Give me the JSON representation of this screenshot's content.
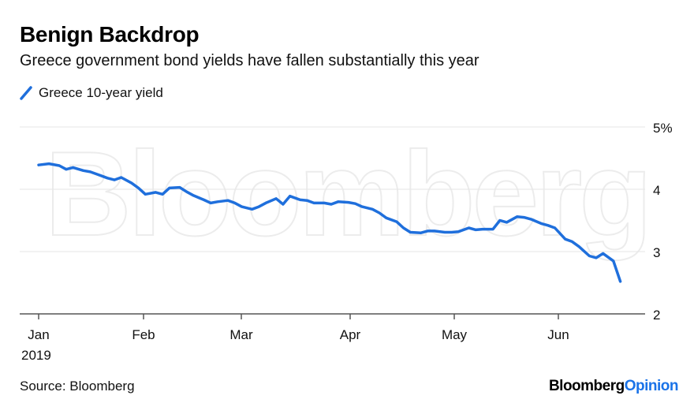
{
  "header": {
    "title": "Benign Backdrop",
    "subtitle": "Greece government bond yields have fallen substantially this year"
  },
  "legend": {
    "items": [
      {
        "label": "Greece 10-year yield",
        "color": "#1f6fdc",
        "icon": "diagonal-line-icon"
      }
    ]
  },
  "footer": {
    "source": "Source: Bloomberg",
    "brand_part1": "Bloomberg",
    "brand_part2": "Opinion"
  },
  "watermark": "Bloomberg",
  "colors": {
    "line": "#1f6fdc",
    "grid": "#e6e6e6",
    "axis": "#555555",
    "brand_accent": "#1a73e8"
  },
  "chart_data": {
    "type": "line",
    "title": "Benign Backdrop",
    "subtitle": "Greece government bond yields have fallen substantially this year",
    "xlabel": "",
    "ylabel": "",
    "ylim": [
      2,
      5
    ],
    "y_ticks": [
      "5%",
      "4",
      "3",
      "2"
    ],
    "y_tick_values": [
      5,
      4,
      3,
      2
    ],
    "x_ticks": [
      "Jan",
      "Feb",
      "Mar",
      "Apr",
      "May",
      "Jun"
    ],
    "x_sub_label": "2019",
    "grid": true,
    "legend_position": "top-left",
    "series": [
      {
        "name": "Greece 10-year yield",
        "color": "#1f6fdc",
        "x": [
          "2019-01-01",
          "2019-01-04",
          "2019-01-07",
          "2019-01-09",
          "2019-01-11",
          "2019-01-14",
          "2019-01-16",
          "2019-01-18",
          "2019-01-21",
          "2019-01-23",
          "2019-01-25",
          "2019-01-28",
          "2019-01-30",
          "2019-02-01",
          "2019-02-04",
          "2019-02-06",
          "2019-02-08",
          "2019-02-11",
          "2019-02-13",
          "2019-02-15",
          "2019-02-18",
          "2019-02-20",
          "2019-02-22",
          "2019-02-25",
          "2019-02-27",
          "2019-03-01",
          "2019-03-04",
          "2019-03-06",
          "2019-03-08",
          "2019-03-11",
          "2019-03-13",
          "2019-03-15",
          "2019-03-18",
          "2019-03-20",
          "2019-03-22",
          "2019-03-25",
          "2019-03-27",
          "2019-03-29",
          "2019-04-01",
          "2019-04-03",
          "2019-04-05",
          "2019-04-08",
          "2019-04-10",
          "2019-04-12",
          "2019-04-15",
          "2019-04-17",
          "2019-04-19",
          "2019-04-22",
          "2019-04-24",
          "2019-04-26",
          "2019-04-29",
          "2019-05-01",
          "2019-05-03",
          "2019-05-06",
          "2019-05-08",
          "2019-05-10",
          "2019-05-13",
          "2019-05-15",
          "2019-05-17",
          "2019-05-20",
          "2019-05-22",
          "2019-05-24",
          "2019-05-27",
          "2019-05-29",
          "2019-05-31",
          "2019-06-03",
          "2019-06-05",
          "2019-06-07",
          "2019-06-10",
          "2019-06-12",
          "2019-06-14",
          "2019-06-17",
          "2019-06-19"
        ],
        "values": [
          4.39,
          4.41,
          4.38,
          4.32,
          4.35,
          4.3,
          4.28,
          4.24,
          4.18,
          4.15,
          4.19,
          4.1,
          4.02,
          3.92,
          3.95,
          3.92,
          4.02,
          4.03,
          3.96,
          3.9,
          3.83,
          3.78,
          3.8,
          3.82,
          3.78,
          3.72,
          3.68,
          3.72,
          3.78,
          3.85,
          3.76,
          3.89,
          3.83,
          3.82,
          3.78,
          3.78,
          3.76,
          3.8,
          3.79,
          3.77,
          3.72,
          3.68,
          3.62,
          3.54,
          3.48,
          3.38,
          3.31,
          3.3,
          3.33,
          3.33,
          3.31,
          3.31,
          3.32,
          3.38,
          3.35,
          3.36,
          3.36,
          3.5,
          3.47,
          3.56,
          3.55,
          3.52,
          3.45,
          3.42,
          3.38,
          3.2,
          3.16,
          3.08,
          2.93,
          2.9,
          2.97,
          2.85,
          2.52
        ]
      }
    ]
  }
}
